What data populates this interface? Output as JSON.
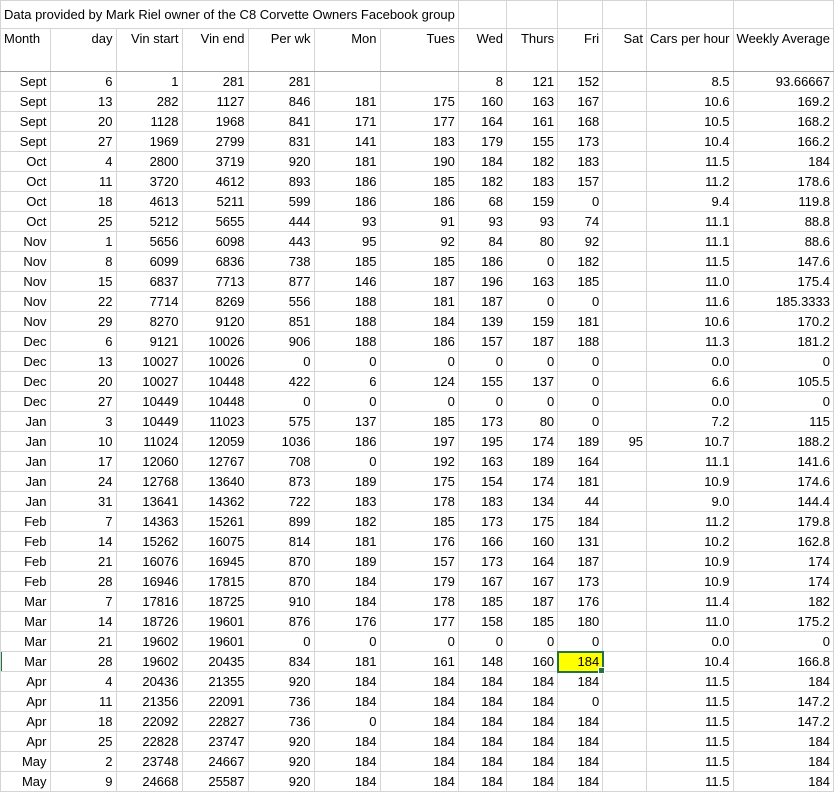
{
  "title": "Data provided by Mark Riel owner of the C8 Corvette Owners Facebook group",
  "headers": [
    "Month",
    "day",
    "Vin start",
    "Vin end",
    "Per wk",
    "Mon",
    "Tues",
    "Wed",
    "Thurs",
    "Fri",
    "Sat",
    "Cars per hour",
    "Weekly Average"
  ],
  "highlight_color": "#ffff00",
  "selected_cell": {
    "row": 28,
    "col": "Fri",
    "value": "184"
  },
  "rows": [
    [
      "Sept",
      "6",
      "1",
      "281",
      "281",
      "",
      "",
      "8",
      "121",
      "152",
      "",
      "8.5",
      "93.66667"
    ],
    [
      "Sept",
      "13",
      "282",
      "1127",
      "846",
      "181",
      "175",
      "160",
      "163",
      "167",
      "",
      "10.6",
      "169.2"
    ],
    [
      "Sept",
      "20",
      "1128",
      "1968",
      "841",
      "171",
      "177",
      "164",
      "161",
      "168",
      "",
      "10.5",
      "168.2"
    ],
    [
      "Sept",
      "27",
      "1969",
      "2799",
      "831",
      "141",
      "183",
      "179",
      "155",
      "173",
      "",
      "10.4",
      "166.2"
    ],
    [
      "Oct",
      "4",
      "2800",
      "3719",
      "920",
      "181",
      "190",
      "184",
      "182",
      "183",
      "",
      "11.5",
      "184"
    ],
    [
      "Oct",
      "11",
      "3720",
      "4612",
      "893",
      "186",
      "185",
      "182",
      "183",
      "157",
      "",
      "11.2",
      "178.6"
    ],
    [
      "Oct",
      "18",
      "4613",
      "5211",
      "599",
      "186",
      "186",
      "68",
      "159",
      "0",
      "",
      "9.4",
      "119.8"
    ],
    [
      "Oct",
      "25",
      "5212",
      "5655",
      "444",
      "93",
      "91",
      "93",
      "93",
      "74",
      "",
      "11.1",
      "88.8"
    ],
    [
      "Nov",
      "1",
      "5656",
      "6098",
      "443",
      "95",
      "92",
      "84",
      "80",
      "92",
      "",
      "11.1",
      "88.6"
    ],
    [
      "Nov",
      "8",
      "6099",
      "6836",
      "738",
      "185",
      "185",
      "186",
      "0",
      "182",
      "",
      "11.5",
      "147.6"
    ],
    [
      "Nov",
      "15",
      "6837",
      "7713",
      "877",
      "146",
      "187",
      "196",
      "163",
      "185",
      "",
      "11.0",
      "175.4"
    ],
    [
      "Nov",
      "22",
      "7714",
      "8269",
      "556",
      "188",
      "181",
      "187",
      "0",
      "0",
      "",
      "11.6",
      "185.3333"
    ],
    [
      "Nov",
      "29",
      "8270",
      "9120",
      "851",
      "188",
      "184",
      "139",
      "159",
      "181",
      "",
      "10.6",
      "170.2"
    ],
    [
      "Dec",
      "6",
      "9121",
      "10026",
      "906",
      "188",
      "186",
      "157",
      "187",
      "188",
      "",
      "11.3",
      "181.2"
    ],
    [
      "Dec",
      "13",
      "10027",
      "10026",
      "0",
      "0",
      "0",
      "0",
      "0",
      "0",
      "",
      "0.0",
      "0"
    ],
    [
      "Dec",
      "20",
      "10027",
      "10448",
      "422",
      "6",
      "124",
      "155",
      "137",
      "0",
      "",
      "6.6",
      "105.5"
    ],
    [
      "Dec",
      "27",
      "10449",
      "10448",
      "0",
      "0",
      "0",
      "0",
      "0",
      "0",
      "",
      "0.0",
      "0"
    ],
    [
      "Jan",
      "3",
      "10449",
      "11023",
      "575",
      "137",
      "185",
      "173",
      "80",
      "0",
      "",
      "7.2",
      "115"
    ],
    [
      "Jan",
      "10",
      "11024",
      "12059",
      "1036",
      "186",
      "197",
      "195",
      "174",
      "189",
      "95",
      "10.7",
      "188.2"
    ],
    [
      "Jan",
      "17",
      "12060",
      "12767",
      "708",
      "0",
      "192",
      "163",
      "189",
      "164",
      "",
      "11.1",
      "141.6"
    ],
    [
      "Jan",
      "24",
      "12768",
      "13640",
      "873",
      "189",
      "175",
      "154",
      "174",
      "181",
      "",
      "10.9",
      "174.6"
    ],
    [
      "Jan",
      "31",
      "13641",
      "14362",
      "722",
      "183",
      "178",
      "183",
      "134",
      "44",
      "",
      "9.0",
      "144.4"
    ],
    [
      "Feb",
      "7",
      "14363",
      "15261",
      "899",
      "182",
      "185",
      "173",
      "175",
      "184",
      "",
      "11.2",
      "179.8"
    ],
    [
      "Feb",
      "14",
      "15262",
      "16075",
      "814",
      "181",
      "176",
      "166",
      "160",
      "131",
      "",
      "10.2",
      "162.8"
    ],
    [
      "Feb",
      "21",
      "16076",
      "16945",
      "870",
      "189",
      "157",
      "173",
      "164",
      "187",
      "",
      "10.9",
      "174"
    ],
    [
      "Feb",
      "28",
      "16946",
      "17815",
      "870",
      "184",
      "179",
      "167",
      "167",
      "173",
      "",
      "10.9",
      "174"
    ],
    [
      "Mar",
      "7",
      "17816",
      "18725",
      "910",
      "184",
      "178",
      "185",
      "187",
      "176",
      "",
      "11.4",
      "182"
    ],
    [
      "Mar",
      "14",
      "18726",
      "19601",
      "876",
      "176",
      "177",
      "158",
      "185",
      "180",
      "",
      "11.0",
      "175.2"
    ],
    [
      "Mar",
      "21",
      "19602",
      "19601",
      "0",
      "0",
      "0",
      "0",
      "0",
      "0",
      "",
      "0.0",
      "0"
    ],
    [
      "Mar",
      "28",
      "19602",
      "20435",
      "834",
      "181",
      "161",
      "148",
      "160",
      "184",
      "",
      "10.4",
      "166.8"
    ],
    [
      "Apr",
      "4",
      "20436",
      "21355",
      "920",
      "184",
      "184",
      "184",
      "184",
      "184",
      "",
      "11.5",
      "184"
    ],
    [
      "Apr",
      "11",
      "21356",
      "22091",
      "736",
      "184",
      "184",
      "184",
      "184",
      "0",
      "",
      "11.5",
      "147.2"
    ],
    [
      "Apr",
      "18",
      "22092",
      "22827",
      "736",
      "0",
      "184",
      "184",
      "184",
      "184",
      "",
      "11.5",
      "147.2"
    ],
    [
      "Apr",
      "25",
      "22828",
      "23747",
      "920",
      "184",
      "184",
      "184",
      "184",
      "184",
      "",
      "11.5",
      "184"
    ],
    [
      "May",
      "2",
      "23748",
      "24667",
      "920",
      "184",
      "184",
      "184",
      "184",
      "184",
      "",
      "11.5",
      "184"
    ],
    [
      "May",
      "9",
      "24668",
      "25587",
      "920",
      "184",
      "184",
      "184",
      "184",
      "184",
      "",
      "11.5",
      "184"
    ]
  ]
}
